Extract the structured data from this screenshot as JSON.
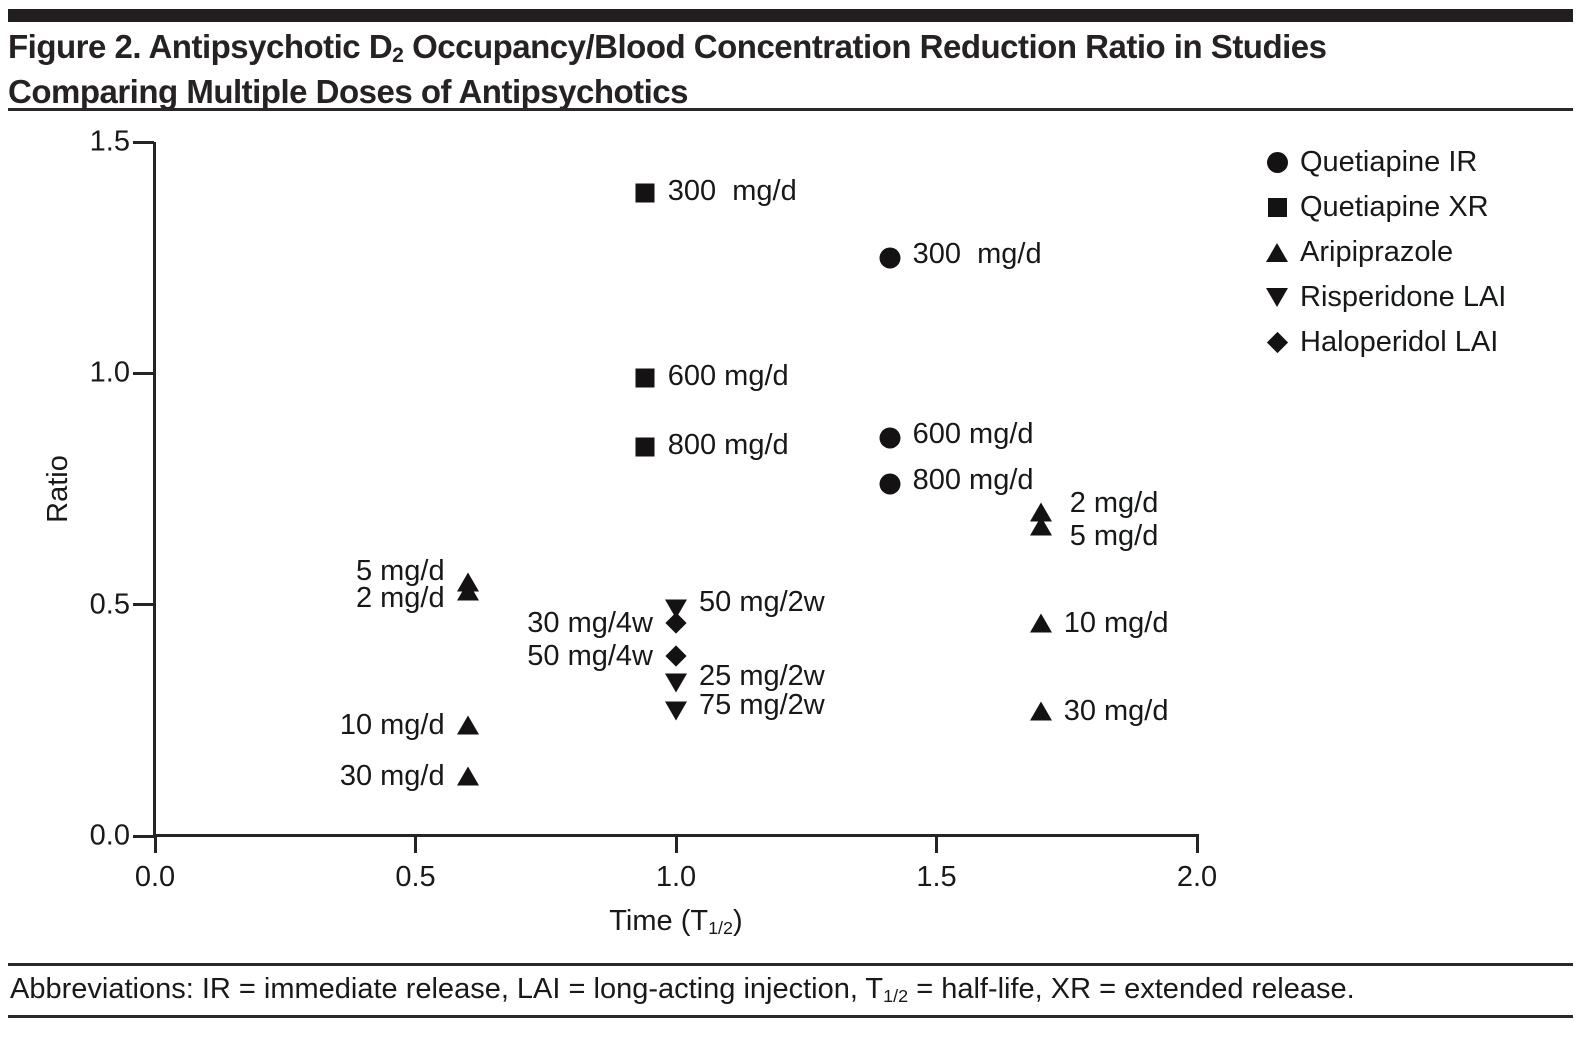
{
  "title": {
    "line1_pre": "Figure 2. Antipsychotic D",
    "line1_sub": "2",
    "line1_post": " Occupancy/Blood Concentration Reduction Ratio in Studies",
    "line2": "Comparing Multiple Doses of Antipsychotics"
  },
  "footer": {
    "pre": "Abbreviations: IR = immediate release, LAI = long-acting injection, T",
    "sub": "1/2",
    "post": " = half-life, XR = extended release."
  },
  "chart_data": {
    "type": "scatter",
    "title": "",
    "ylabel": "Ratio",
    "xlabel": {
      "pre": "Time (T",
      "sub": "1/2",
      "post": ")"
    },
    "xlim": [
      0.0,
      2.0
    ],
    "ylim": [
      0.0,
      1.5
    ],
    "xticks": {
      "values": [
        0.0,
        0.5,
        1.0,
        1.5,
        2.0
      ],
      "labels": [
        "0.0",
        "0.5",
        "1.0",
        "1.5",
        "2.0"
      ]
    },
    "yticks": {
      "values": [
        0.0,
        0.5,
        1.0,
        1.5
      ],
      "labels": [
        "0.0",
        "0.5",
        "1.0",
        "1.5"
      ]
    },
    "grid": false,
    "legend_position": "upper right",
    "marker_color": "#151213",
    "series": [
      {
        "name": "Quetiapine IR",
        "marker": "circle",
        "points": [
          {
            "x": 1.41,
            "y": 1.25,
            "label": "300  mg/d",
            "label_side": "right",
            "label_dy": -4
          },
          {
            "x": 1.41,
            "y": 0.86,
            "label": "600 mg/d",
            "label_side": "right",
            "label_dy": -4
          },
          {
            "x": 1.41,
            "y": 0.76,
            "label": "800 mg/d",
            "label_side": "right",
            "label_dy": -4
          }
        ]
      },
      {
        "name": "Quetiapine XR",
        "marker": "square",
        "points": [
          {
            "x": 0.94,
            "y": 1.39,
            "label": "300  mg/d",
            "label_side": "right",
            "label_dy": -2
          },
          {
            "x": 0.94,
            "y": 0.99,
            "label": "600 mg/d",
            "label_side": "right",
            "label_dy": -2
          },
          {
            "x": 0.94,
            "y": 0.84,
            "label": "800 mg/d",
            "label_side": "right",
            "label_dy": -2
          }
        ]
      },
      {
        "name": "Aripiprazole",
        "marker": "triangle-up",
        "points": [
          {
            "x": 0.6,
            "y": 0.55,
            "label": "5 mg/d",
            "label_side": "left",
            "label_dy": -11
          },
          {
            "x": 0.6,
            "y": 0.53,
            "label": "2 mg/d",
            "label_side": "left",
            "label_dy": 7
          },
          {
            "x": 0.6,
            "y": 0.24,
            "label": "10 mg/d",
            "label_side": "left",
            "label_dy": 0
          },
          {
            "x": 0.6,
            "y": 0.13,
            "label": "30 mg/d",
            "label_side": "left",
            "label_dy": 0
          },
          {
            "x": 1.7,
            "y": 0.7,
            "label": "2 mg/d",
            "label_side": "right",
            "label_dy": -9,
            "label_dx": 6
          },
          {
            "x": 1.7,
            "y": 0.67,
            "label": "5 mg/d",
            "label_side": "right",
            "label_dy": 10,
            "label_dx": 6
          },
          {
            "x": 1.7,
            "y": 0.46,
            "label": "10 mg/d",
            "label_side": "right",
            "label_dy": 0
          },
          {
            "x": 1.7,
            "y": 0.27,
            "label": "30 mg/d",
            "label_side": "right",
            "label_dy": 0
          }
        ]
      },
      {
        "name": "Risperidone LAI",
        "marker": "triangle-down",
        "points": [
          {
            "x": 1.0,
            "y": 0.49,
            "label": "50 mg/2w",
            "label_side": "right",
            "label_dy": -7
          },
          {
            "x": 1.0,
            "y": 0.33,
            "label": "25 mg/2w",
            "label_side": "right",
            "label_dy": -7
          },
          {
            "x": 1.0,
            "y": 0.27,
            "label": "75 mg/2w",
            "label_side": "right",
            "label_dy": -6
          }
        ]
      },
      {
        "name": "Haloperidol LAI",
        "marker": "diamond",
        "points": [
          {
            "x": 1.0,
            "y": 0.46,
            "label": "30 mg/4w",
            "label_side": "left",
            "label_dy": 0
          },
          {
            "x": 1.0,
            "y": 0.39,
            "label": "50 mg/4w",
            "label_side": "left",
            "label_dy": 0
          }
        ]
      }
    ]
  }
}
